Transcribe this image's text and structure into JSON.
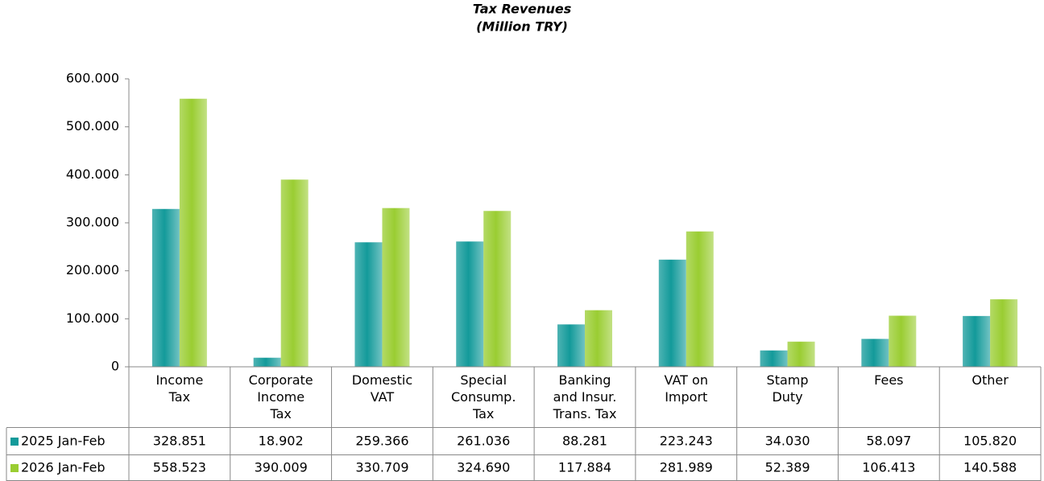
{
  "chart_data": {
    "type": "bar",
    "title": "Tax Revenues",
    "subtitle": "(Million TRY)",
    "categories": [
      "Income\nTax",
      "Corporate\nIncome\nTax",
      "Domestic\nVAT",
      "Special\nConsump.\nTax",
      "Banking\nand Insur.\nTrans. Tax",
      "VAT on\nImport",
      "Stamp\nDuty",
      "Fees",
      "Other"
    ],
    "series": [
      {
        "name": "2025 Jan-Feb",
        "color": "#139a9a",
        "values": [
          328851,
          18902,
          259366,
          261036,
          88281,
          223243,
          34030,
          58097,
          105820
        ],
        "value_labels": [
          "328.851",
          "18.902",
          "259.366",
          "261.036",
          "88.281",
          "223.243",
          "34.030",
          "58.097",
          "105.820"
        ]
      },
      {
        "name": "2026 Jan-Feb",
        "color": "#9acd32",
        "values": [
          558523,
          390009,
          330709,
          324690,
          117884,
          281989,
          52389,
          106413,
          140588
        ],
        "value_labels": [
          "558.523",
          "390.009",
          "330.709",
          "324.690",
          "117.884",
          "281.989",
          "52.389",
          "106.413",
          "140.588"
        ]
      }
    ],
    "ylim": [
      0,
      600000
    ],
    "yticks": [
      0,
      {
        "value": 100000,
        "label": "100.000"
      },
      {
        "value": 200000,
        "label": "200.000"
      },
      {
        "value": 300000,
        "label": "300.000"
      },
      {
        "value": 400000,
        "label": "400.000"
      },
      {
        "value": 500000,
        "label": "500.000"
      },
      {
        "value": 600000,
        "label": "600.000"
      }
    ],
    "grid": false
  }
}
